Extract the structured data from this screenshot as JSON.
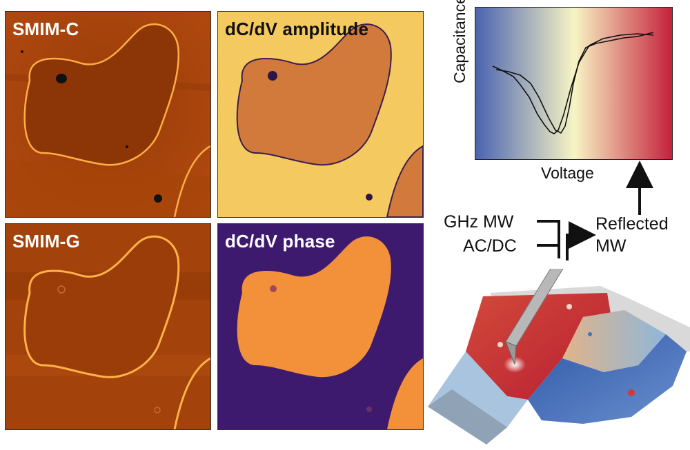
{
  "panels": {
    "smim_c": {
      "label": "SMIM-C"
    },
    "dcdv_amplitude": {
      "label": "dC/dV amplitude"
    },
    "smim_g": {
      "label": "SMIM-G"
    },
    "dcdv_phase": {
      "label": "dC/dV phase"
    }
  },
  "cv_plot": {
    "ylabel": "Capacitance",
    "xlabel": "Voltage",
    "background_gradient": [
      "#4a63b0",
      "#f7f4c4",
      "#c41e3a"
    ]
  },
  "signal_flow": {
    "input_1": "GHz MW",
    "input_2": "AC/DC",
    "output_line_1": "Reflected",
    "output_line_2": "MW"
  },
  "colors": {
    "smim_bg": "#a0400a",
    "smim_domain": "#8a3406",
    "smim_wall": "#ffb247",
    "amp_bg": "#f3c55a",
    "amp_domain": "#d0773a",
    "amp_wall": "#3b1c4f",
    "phase_bg": "#3d1a6e",
    "phase_domain": "#f2913a"
  }
}
